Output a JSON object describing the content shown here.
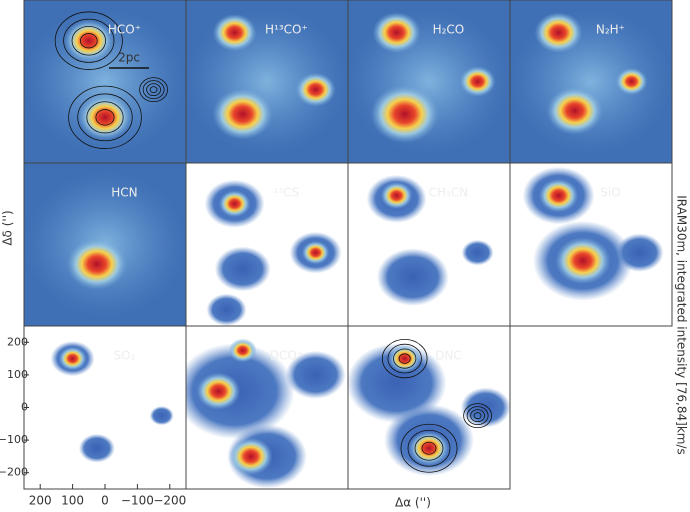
{
  "chart_data": {
    "type": "map-grid",
    "panels": [
      "HCO⁺",
      "H¹³CO⁺",
      "H₂CO",
      "N₂H⁺",
      "HCN",
      "¹³CS",
      "CH₃CN",
      "SiO",
      "SO₂",
      "DCO⁺",
      "DNC"
    ],
    "scale_bar": "2pc",
    "xlabel": "Δα ('')",
    "ylabel": "Δδ ('')",
    "side_label": "IRAM30m, integrated intensity [76,84]km/s",
    "xlim": [
      250,
      -250
    ],
    "ylim": [
      -250,
      250
    ],
    "xticks": [
      200,
      100,
      0,
      {
        "value": -100,
        "label": "−100"
      },
      {
        "value": -200,
        "label": "−200"
      }
    ],
    "yticks": [
      200,
      100,
      0,
      {
        "value": -100,
        "label": "−100"
      },
      {
        "value": -200,
        "label": "−200"
      }
    ]
  }
}
